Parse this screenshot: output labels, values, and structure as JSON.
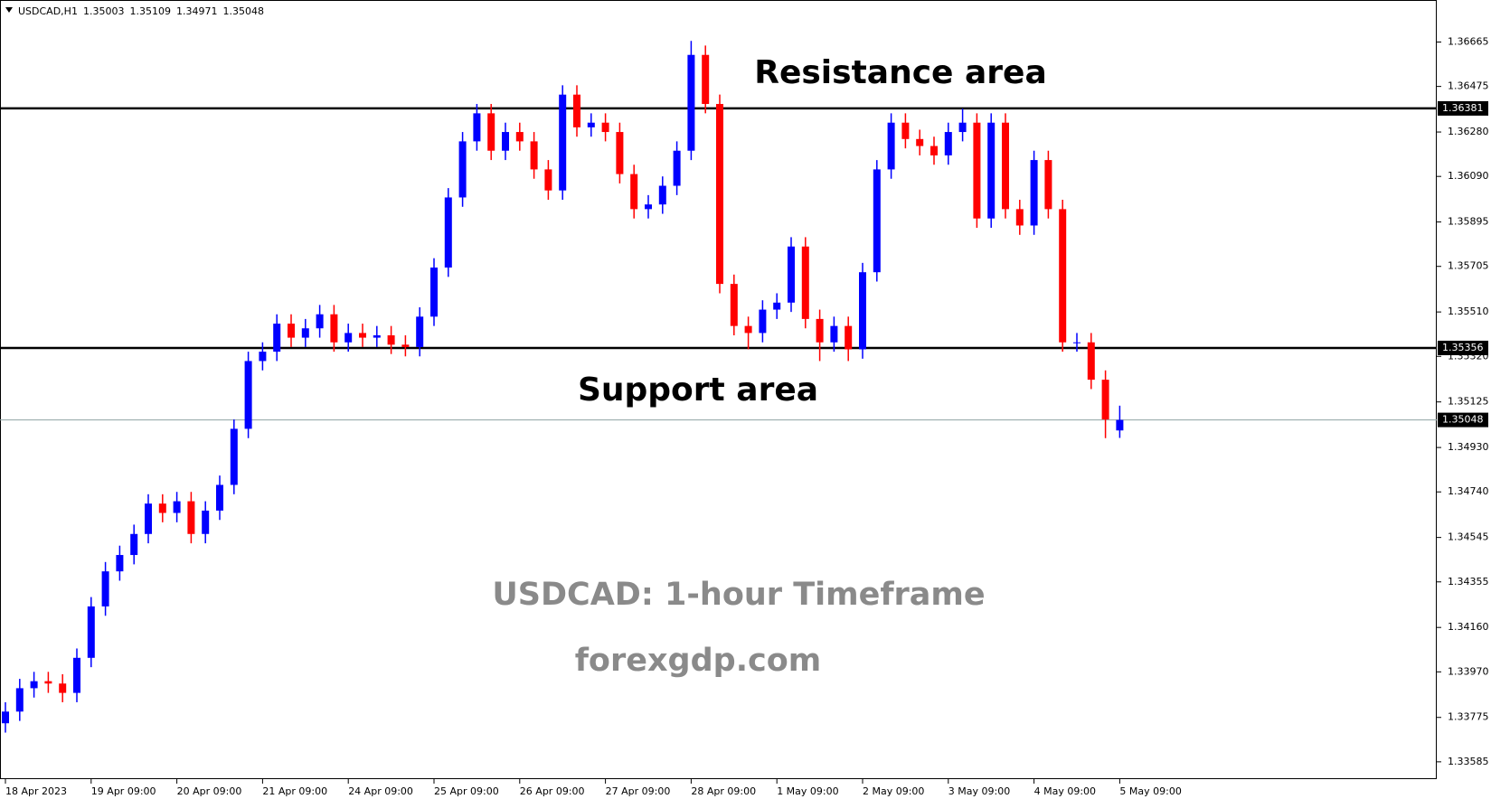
{
  "chart_data": {
    "type": "candlestick",
    "header": {
      "symbol": "USDCAD,H1",
      "open": 1.35003,
      "high": 1.35109,
      "low": 1.34971,
      "close": 1.35048
    },
    "categories": [
      "18 Apr 2023",
      null,
      null,
      null,
      null,
      null,
      "19 Apr 09:00",
      null,
      null,
      null,
      null,
      null,
      "20 Apr 09:00",
      null,
      null,
      null,
      null,
      null,
      "21 Apr 09:00",
      null,
      null,
      null,
      null,
      null,
      "24 Apr 09:00",
      null,
      null,
      null,
      null,
      null,
      "25 Apr 09:00",
      null,
      null,
      null,
      null,
      null,
      "26 Apr 09:00",
      null,
      null,
      null,
      null,
      null,
      "27 Apr 09:00",
      null,
      null,
      null,
      null,
      null,
      "28 Apr 09:00",
      null,
      null,
      null,
      null,
      null,
      "1 May 09:00",
      null,
      null,
      null,
      null,
      null,
      "2 May 09:00",
      null,
      null,
      null,
      null,
      null,
      "3 May 09:00",
      null,
      null,
      null,
      null,
      null,
      "4 May 09:00",
      null,
      null,
      null,
      null,
      null,
      "5 May 09:00"
    ],
    "open": [
      1.3375,
      1.338,
      1.339,
      1.3393,
      1.3392,
      1.3388,
      1.3403,
      1.3425,
      1.344,
      1.3447,
      1.3456,
      1.3469,
      1.3465,
      1.347,
      1.3456,
      1.3466,
      1.3477,
      1.3501,
      1.353,
      1.3534,
      1.3546,
      1.354,
      1.3544,
      1.355,
      1.3538,
      1.3542,
      1.354,
      1.3541,
      1.3537,
      1.3536,
      1.3549,
      1.357,
      1.36,
      1.3624,
      1.3636,
      1.362,
      1.3628,
      1.3624,
      1.3612,
      1.3603,
      1.3644,
      1.363,
      1.3632,
      1.3628,
      1.361,
      1.3595,
      1.3597,
      1.3605,
      1.362,
      1.3661,
      1.364,
      1.3563,
      1.3545,
      1.3542,
      1.3552,
      1.3555,
      1.3579,
      1.3548,
      1.3538,
      1.3545,
      1.3535,
      1.3568,
      1.3612,
      1.3632,
      1.3625,
      1.3622,
      1.3618,
      1.3628,
      1.3632,
      1.3591,
      1.3632,
      1.3595,
      1.3588,
      1.3616,
      1.3595,
      1.3538,
      1.3538,
      1.3522,
      1.35003
    ],
    "high": [
      1.3384,
      1.3394,
      1.3397,
      1.3397,
      1.3396,
      1.3407,
      1.3429,
      1.3444,
      1.3451,
      1.346,
      1.3473,
      1.3473,
      1.3474,
      1.3474,
      1.347,
      1.3481,
      1.3505,
      1.3534,
      1.3538,
      1.355,
      1.355,
      1.3548,
      1.3554,
      1.3554,
      1.3546,
      1.3546,
      1.3545,
      1.3545,
      1.3541,
      1.3553,
      1.3574,
      1.3604,
      1.3628,
      1.364,
      1.364,
      1.3632,
      1.3632,
      1.3628,
      1.3616,
      1.3648,
      1.3648,
      1.3636,
      1.3636,
      1.3632,
      1.3614,
      1.3601,
      1.3609,
      1.3624,
      1.3667,
      1.3665,
      1.3644,
      1.3567,
      1.3549,
      1.3556,
      1.3559,
      1.3583,
      1.3583,
      1.3552,
      1.3549,
      1.3549,
      1.3572,
      1.3616,
      1.3636,
      1.3636,
      1.3629,
      1.3626,
      1.3632,
      1.3638,
      1.3636,
      1.3636,
      1.3636,
      1.3599,
      1.362,
      1.362,
      1.3599,
      1.3542,
      1.3542,
      1.3526,
      1.35109
    ],
    "low": [
      1.3371,
      1.3376,
      1.3386,
      1.3388,
      1.3384,
      1.3384,
      1.3399,
      1.3421,
      1.3436,
      1.3443,
      1.3452,
      1.3461,
      1.3461,
      1.3452,
      1.3452,
      1.3462,
      1.3473,
      1.3497,
      1.3526,
      1.353,
      1.3536,
      1.3536,
      1.354,
      1.3534,
      1.3534,
      1.3536,
      1.3536,
      1.3533,
      1.3532,
      1.3532,
      1.3545,
      1.3566,
      1.3596,
      1.362,
      1.3616,
      1.3616,
      1.362,
      1.3608,
      1.3599,
      1.3599,
      1.3626,
      1.3626,
      1.3624,
      1.3606,
      1.3591,
      1.3591,
      1.3593,
      1.3601,
      1.3616,
      1.3636,
      1.3559,
      1.3541,
      1.3535,
      1.3538,
      1.3548,
      1.3551,
      1.3544,
      1.353,
      1.3534,
      1.353,
      1.3531,
      1.3564,
      1.3608,
      1.3621,
      1.3618,
      1.3614,
      1.3614,
      1.3624,
      1.3587,
      1.3587,
      1.3591,
      1.3584,
      1.3584,
      1.3591,
      1.3534,
      1.3534,
      1.3518,
      1.3497,
      1.34971
    ],
    "close": [
      1.338,
      1.339,
      1.3393,
      1.3392,
      1.3388,
      1.3403,
      1.3425,
      1.344,
      1.3447,
      1.3456,
      1.3469,
      1.3465,
      1.347,
      1.3456,
      1.3466,
      1.3477,
      1.3501,
      1.353,
      1.3534,
      1.3546,
      1.354,
      1.3544,
      1.355,
      1.3538,
      1.3542,
      1.354,
      1.3541,
      1.3537,
      1.3536,
      1.3549,
      1.357,
      1.36,
      1.3624,
      1.3636,
      1.362,
      1.3628,
      1.3624,
      1.3612,
      1.3603,
      1.3644,
      1.363,
      1.3632,
      1.3628,
      1.361,
      1.3595,
      1.3597,
      1.3605,
      1.362,
      1.3661,
      1.364,
      1.3563,
      1.3545,
      1.3542,
      1.3552,
      1.3555,
      1.3579,
      1.3548,
      1.3538,
      1.3545,
      1.3535,
      1.3568,
      1.3612,
      1.3632,
      1.3625,
      1.3622,
      1.3618,
      1.3628,
      1.3632,
      1.3591,
      1.3632,
      1.3595,
      1.3588,
      1.3616,
      1.3595,
      1.3538,
      1.3538,
      1.3522,
      1.3505,
      1.35048
    ],
    "up_color": "#0000ff",
    "down_color": "#ff0000",
    "ylim": [
      1.33511,
      1.36841
    ],
    "yticks": [
      1.36665,
      1.36475,
      {
        "value": 1.3628,
        "label": "1.36280"
      },
      {
        "value": 1.3609,
        "label": "1.36090"
      },
      1.35895,
      1.35705,
      {
        "value": 1.3551,
        "label": "1.35510"
      },
      {
        "value": 1.3532,
        "label": "1.35320"
      },
      1.35125,
      {
        "value": 1.3493,
        "label": "1.34930"
      },
      {
        "value": 1.3474,
        "label": "1.34740"
      },
      1.34545,
      1.34355,
      {
        "value": 1.3416,
        "label": "1.34160"
      },
      {
        "value": 1.3397,
        "label": "1.33970"
      },
      1.33775,
      1.33585
    ],
    "levels": [
      1.36381,
      1.35356
    ],
    "current_price": 1.35048,
    "annotations": {
      "resistance": "Resistance area",
      "support": "Support area",
      "timeframe": "USDCAD: 1-hour Timeframe",
      "site": "forexgdp.com"
    }
  }
}
